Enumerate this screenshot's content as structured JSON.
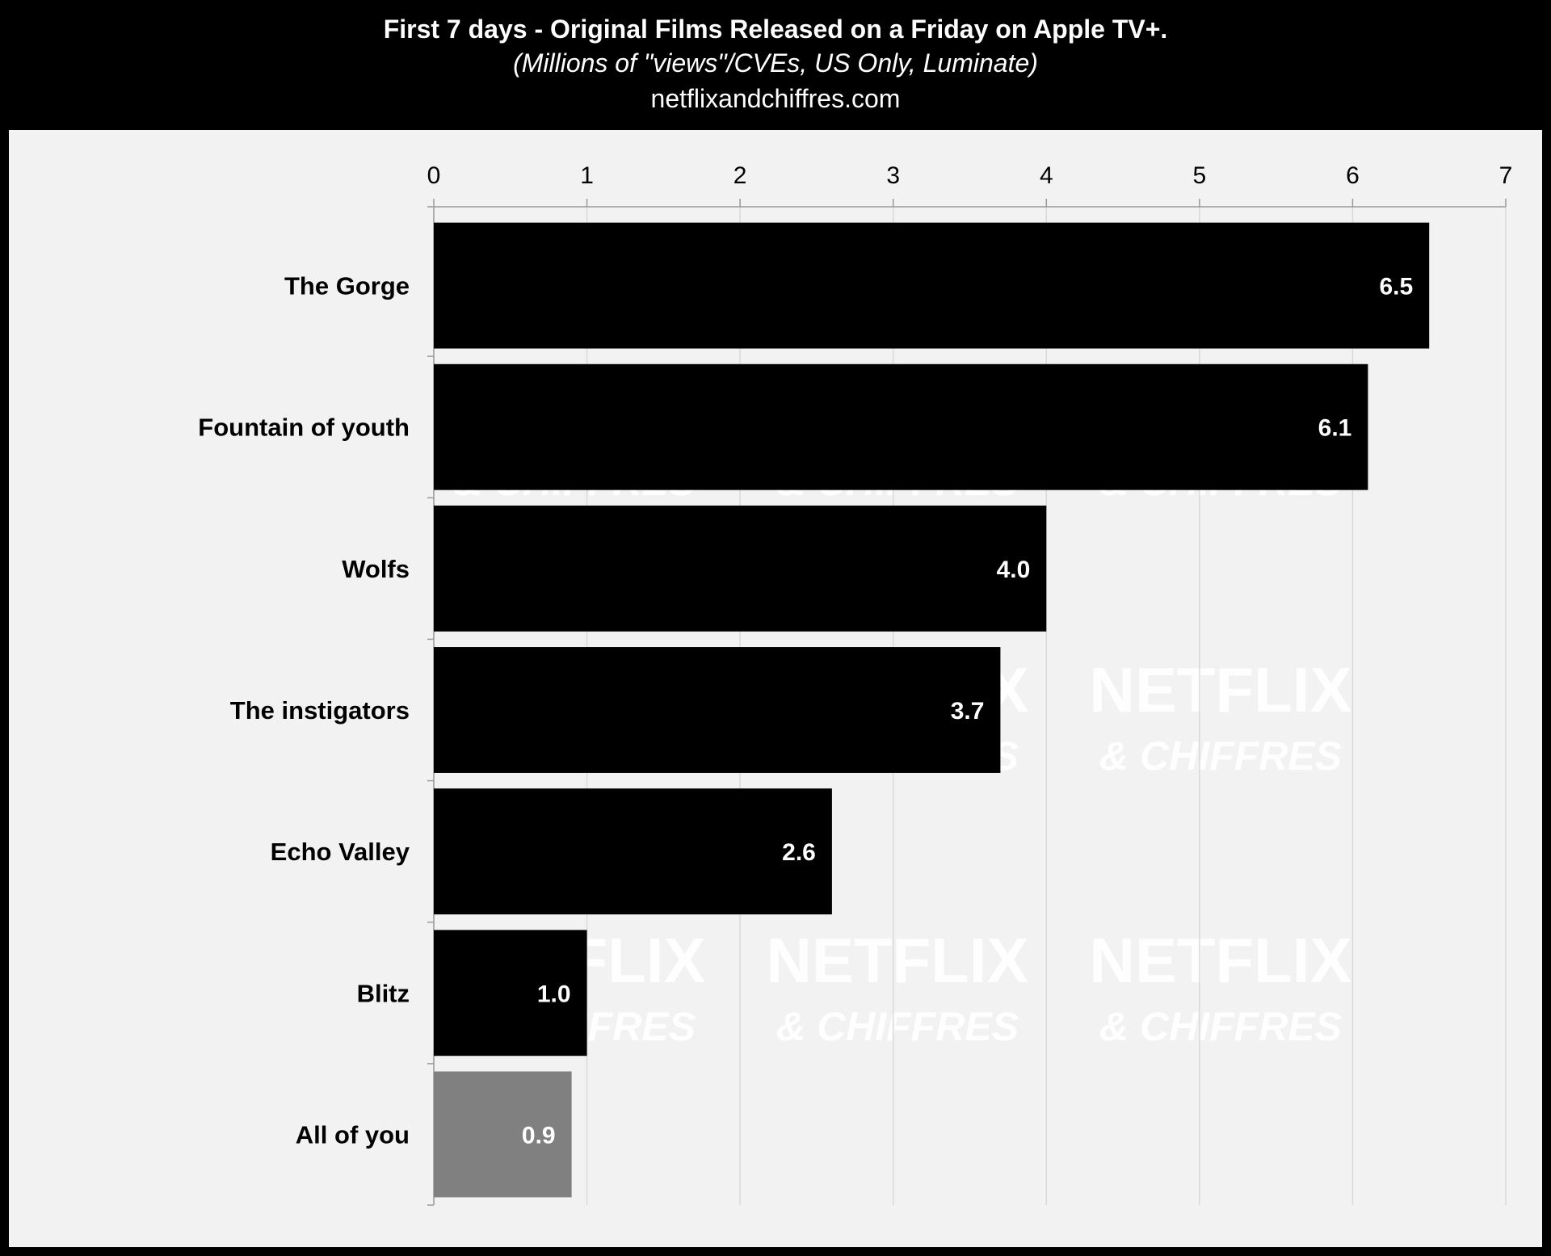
{
  "header": {
    "title": "First 7 days - Original Films Released on a Friday on Apple TV+.",
    "subtitle": "(Millions of \"views\"/CVEs, US Only, Luminate)",
    "source": "netflixandchiffres.com"
  },
  "watermark": {
    "line1": "NETFLIX",
    "line2": "& CHIFFRES"
  },
  "colors": {
    "background": "#000000",
    "plot_area": "#f2f2f2",
    "bar": "#000000",
    "bar_highlight": "#808080",
    "gridline": "#d9d9d9",
    "label_text": "#000000",
    "value_text": "#ffffff"
  },
  "chart_data": {
    "type": "bar",
    "orientation": "horizontal",
    "title": "First 7 days - Original Films Released on a Friday on Apple TV+.",
    "subtitle": "(Millions of \"views\"/CVEs, US Only, Luminate)",
    "xlabel": "",
    "ylabel": "",
    "xlim": [
      0,
      7
    ],
    "xticks": [
      0,
      1,
      2,
      3,
      4,
      5,
      6,
      7
    ],
    "x_axis_position": "top",
    "grid": true,
    "categories": [
      "The Gorge",
      "Fountain of youth",
      "Wolfs",
      "The instigators",
      "Echo Valley",
      "Blitz",
      "All of you"
    ],
    "values": [
      6.5,
      6.1,
      4.0,
      3.7,
      2.6,
      1.0,
      0.9
    ],
    "value_labels": [
      "6.5",
      "6.1",
      "4.0",
      "3.7",
      "2.6",
      "1.0",
      "0.9"
    ],
    "highlighted": [
      "All of you"
    ]
  }
}
